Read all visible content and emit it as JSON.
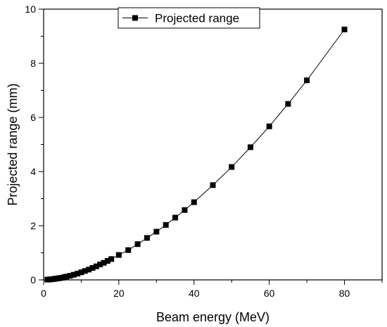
{
  "chart_data": {
    "type": "line",
    "xlabel": "Beam energy (MeV)",
    "ylabel": "Projected range (mm)",
    "xlim": [
      0,
      90
    ],
    "ylim": [
      0,
      10
    ],
    "x_ticks": [
      0,
      20,
      40,
      60,
      80
    ],
    "y_ticks": [
      0,
      2,
      4,
      6,
      8,
      10
    ],
    "grid": false,
    "legend": {
      "position": "top-center",
      "entries": [
        "Projected range"
      ]
    },
    "series": [
      {
        "name": "Projected range",
        "marker": "square",
        "color": "#000000",
        "x": [
          1,
          1.5,
          2,
          2.5,
          3,
          3.5,
          4,
          4.5,
          5,
          5.5,
          6,
          7,
          8,
          9,
          10,
          11,
          12,
          13,
          14,
          15,
          16,
          17,
          18,
          20,
          22.5,
          25,
          27.5,
          30,
          32.5,
          35,
          37.5,
          40,
          45,
          50,
          55,
          60,
          65,
          70,
          80
        ],
        "y": [
          0.01,
          0.015,
          0.02,
          0.03,
          0.04,
          0.05,
          0.06,
          0.07,
          0.08,
          0.1,
          0.12,
          0.15,
          0.19,
          0.23,
          0.28,
          0.33,
          0.38,
          0.44,
          0.5,
          0.57,
          0.63,
          0.7,
          0.77,
          0.92,
          1.1,
          1.32,
          1.55,
          1.78,
          2.03,
          2.3,
          2.58,
          2.87,
          3.5,
          4.17,
          4.9,
          5.67,
          6.5,
          7.37,
          9.25
        ]
      }
    ]
  }
}
